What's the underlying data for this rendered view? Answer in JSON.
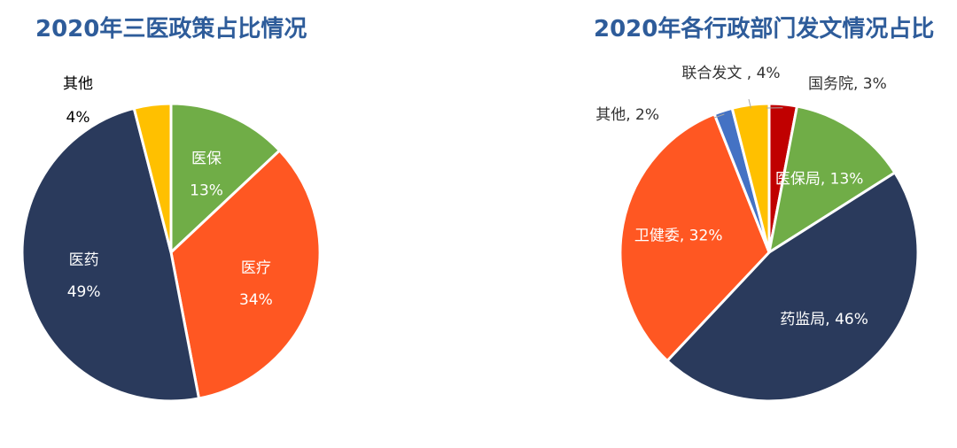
{
  "chart_data": [
    {
      "type": "pie",
      "title": "2020年三医政策占比情况",
      "start_angle_deg": 0,
      "slices": [
        {
          "name": "医保",
          "value": 13,
          "label": "13%",
          "color": "#70ad47",
          "label_color": "#ffffff"
        },
        {
          "name": "医疗",
          "value": 34,
          "label": "34%",
          "color": "#ff5722",
          "label_color": "#ffffff"
        },
        {
          "name": "医药",
          "value": 49,
          "label": "49%",
          "color": "#2a3a5c",
          "label_color": "#ffffff"
        },
        {
          "name": "其他",
          "value": 4,
          "label": "4%",
          "color": "#ffc000",
          "label_color": "#000000"
        }
      ]
    },
    {
      "type": "pie",
      "title": "2020年各行政部门发文情况占比",
      "start_angle_deg": 0,
      "slices": [
        {
          "name": "国务院",
          "value": 3,
          "label": "国务院, 3%",
          "color": "#c00000",
          "label_color": "#333333"
        },
        {
          "name": "医保局",
          "value": 13,
          "label": "医保局, 13%",
          "color": "#70ad47",
          "label_color": "#ffffff"
        },
        {
          "name": "药监局",
          "value": 46,
          "label": "药监局, 46%",
          "color": "#2a3a5c",
          "label_color": "#ffffff"
        },
        {
          "name": "卫健委",
          "value": 32,
          "label": "卫健委, 32%",
          "color": "#ff5722",
          "label_color": "#ffffff"
        },
        {
          "name": "其他",
          "value": 2,
          "label": "其他, 2%",
          "color": "#4472c4",
          "label_color": "#333333"
        },
        {
          "name": "联合发文",
          "value": 4,
          "label": "联合发文 , 4%",
          "color": "#ffc000",
          "label_color": "#333333"
        }
      ]
    }
  ]
}
